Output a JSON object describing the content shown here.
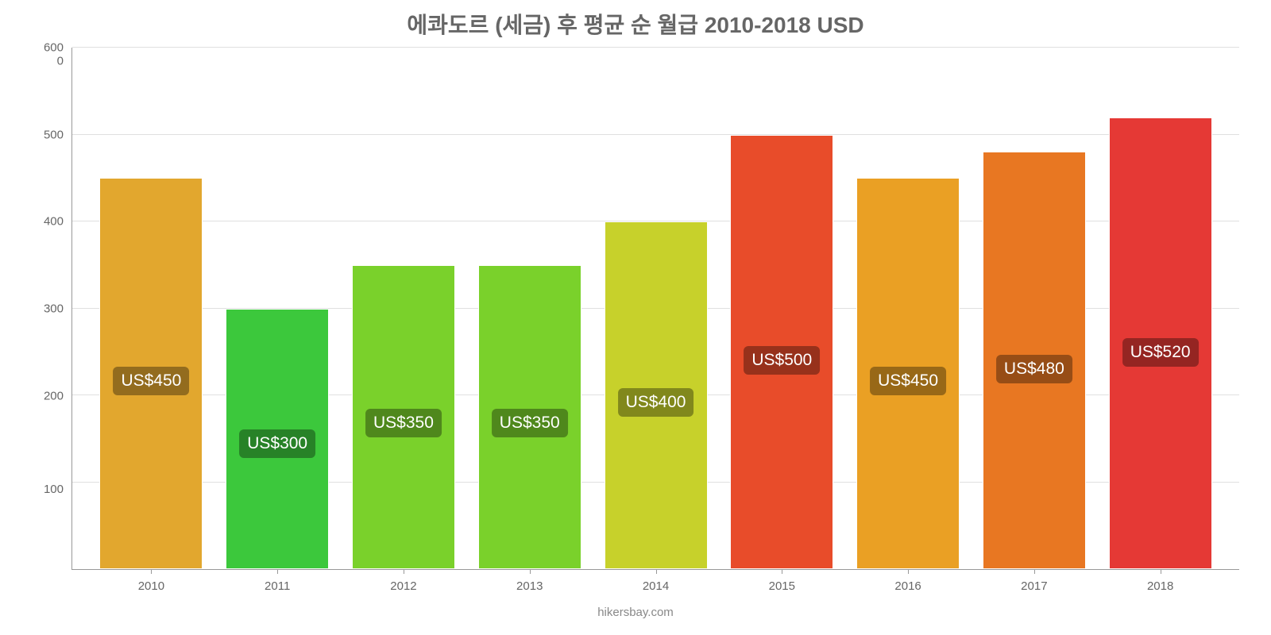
{
  "chart": {
    "type": "bar",
    "title": "에콰도르 (세금) 후 평균 순 월급 2010-2018 USD",
    "title_color": "#666666",
    "title_fontsize": 28,
    "background_color": "#ffffff",
    "grid_color": "#e0e0e0",
    "axis_color": "#999999",
    "text_color": "#666666",
    "ylim": [
      0,
      600
    ],
    "ytick_step": 100,
    "y_ticks": [
      0,
      100,
      200,
      300,
      400,
      500,
      600
    ],
    "categories": [
      "2010",
      "2011",
      "2012",
      "2013",
      "2014",
      "2015",
      "2016",
      "2017",
      "2018"
    ],
    "values": [
      450,
      300,
      350,
      350,
      400,
      500,
      450,
      480,
      520
    ],
    "value_labels": [
      "US$450",
      "US$300",
      "US$350",
      "US$350",
      "US$400",
      "US$500",
      "US$450",
      "US$480",
      "US$520"
    ],
    "bar_colors": [
      "#e2a72e",
      "#3cc83c",
      "#7ad12b",
      "#7ad12b",
      "#c7d12b",
      "#e84c2a",
      "#eaa024",
      "#e87722",
      "#e53935"
    ],
    "bar_width": 0.85,
    "label_fontsize": 15,
    "value_label_fontsize": 21,
    "value_label_bg": "rgba(0,0,0,0.35)",
    "value_label_color": "#ffffff",
    "footer": "hikersbay.com",
    "footer_color": "#888888",
    "footer_fontsize": 15
  }
}
